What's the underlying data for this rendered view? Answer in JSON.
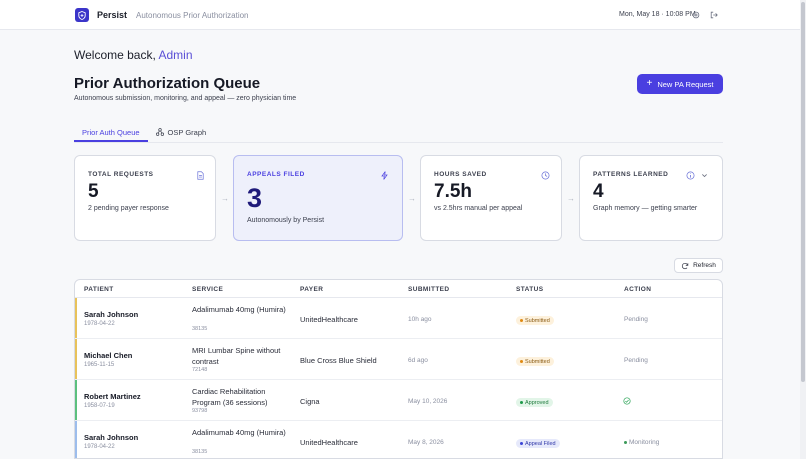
{
  "app": {
    "brand": "Persist",
    "tagline": "Autonomous Prior Authorization",
    "datetime": "Mon, May 18 · 10:08 PM"
  },
  "welcome": {
    "prefix": "Welcome back,",
    "name": "Admin"
  },
  "page": {
    "title": "Prior Authorization Queue",
    "subtitle": "Autonomous submission, monitoring, and appeal — zero physician time",
    "new_button": "New PA Request"
  },
  "tabs": [
    {
      "label": "Prior Auth Queue",
      "active": true
    },
    {
      "label": "OSP Graph",
      "active": false
    }
  ],
  "cards": [
    {
      "label": "TOTAL REQUESTS",
      "value": "5",
      "desc": "2 pending payer response",
      "icon": "document-icon"
    },
    {
      "label": "APPEALS FILED",
      "value": "3",
      "desc": "Autonomously by Persist",
      "icon": "lightning-icon"
    },
    {
      "label": "HOURS SAVED",
      "value": "7.5h",
      "desc": "vs 2.5hrs manual per appeal",
      "icon": "clock-icon"
    },
    {
      "label": "PATTERNS LEARNED",
      "value": "4",
      "desc": "Graph memory — getting smarter",
      "icon": "info-icon"
    }
  ],
  "refresh_label": "Refresh",
  "table": {
    "headers": [
      "PATIENT",
      "SERVICE",
      "PAYER",
      "SUBMITTED",
      "STATUS",
      "ACTION"
    ],
    "rows": [
      {
        "patient": "Sarah Johnson",
        "dob": "1978-04-22",
        "service": "Adalimumab 40mg (Humira)",
        "code": "38135",
        "payer": "UnitedHealthcare",
        "submitted": "10h ago",
        "status": "Submitted",
        "action": "Pending"
      },
      {
        "patient": "Michael Chen",
        "dob": "1965-11-15",
        "service": "MRI Lumbar Spine without contrast",
        "code": "72148",
        "payer": "Blue Cross Blue Shield",
        "submitted": "6d ago",
        "status": "Submitted",
        "action": "Pending"
      },
      {
        "patient": "Robert Martinez",
        "dob": "1958-07-19",
        "service": "Cardiac Rehabilitation Program (36 sessions)",
        "code": "93798",
        "payer": "Cigna",
        "submitted": "May 10, 2026",
        "status": "Approved",
        "action": ""
      },
      {
        "patient": "Sarah Johnson",
        "dob": "1978-04-22",
        "service": "Adalimumab 40mg (Humira)",
        "code": "38135",
        "payer": "UnitedHealthcare",
        "submitted": "May 8, 2026",
        "status": "Appeal Filed",
        "action": "Monitoring"
      }
    ]
  },
  "colors": {
    "accent": "#4a3fe0",
    "submitted_accent": "#e0b84a",
    "approved_accent": "#3bb36a",
    "appeal_accent": "#8fb5e8"
  }
}
